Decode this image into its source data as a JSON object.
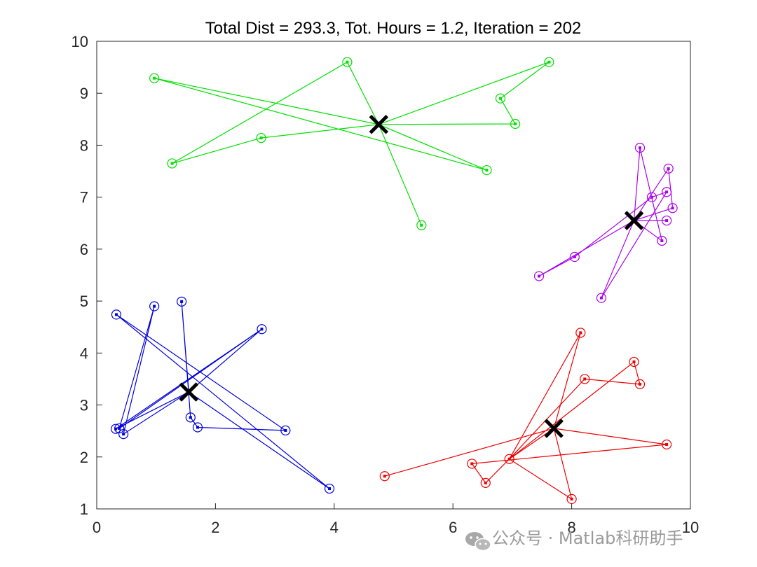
{
  "chart_data": {
    "type": "scatter",
    "title": "Total Dist = 293.3, Tot. Hours = 1.2, Iteration = 202",
    "xlabel": "",
    "ylabel": "",
    "xlim": [
      0,
      10
    ],
    "ylim": [
      1,
      10
    ],
    "xticks": [
      "0",
      "2",
      "4",
      "6",
      "8",
      "10"
    ],
    "yticks": [
      "1",
      "2",
      "3",
      "4",
      "5",
      "6",
      "7",
      "8",
      "9",
      "10"
    ],
    "grid": false,
    "legend": "none",
    "series": [
      {
        "color": "#00e000",
        "depot": [
          4.75,
          8.4
        ],
        "route": [
          [
            4.75,
            8.4
          ],
          [
            0.97,
            9.29
          ],
          [
            6.57,
            7.52
          ],
          [
            4.75,
            8.4
          ],
          [
            5.47,
            6.46
          ],
          [
            4.75,
            8.4
          ],
          [
            4.22,
            9.6
          ],
          [
            1.27,
            7.65
          ],
          [
            2.77,
            8.14
          ],
          [
            4.75,
            8.4
          ],
          [
            7.05,
            8.41
          ],
          [
            6.8,
            8.9
          ],
          [
            7.62,
            9.6
          ],
          [
            4.75,
            8.4
          ]
        ]
      },
      {
        "color": "#aa00ee",
        "depot": [
          9.05,
          6.55
        ],
        "route": [
          [
            9.05,
            6.55
          ],
          [
            9.15,
            7.95
          ],
          [
            9.52,
            6.16
          ],
          [
            9.05,
            6.55
          ],
          [
            9.6,
            6.55
          ],
          [
            9.05,
            6.55
          ],
          [
            9.7,
            6.79
          ],
          [
            9.63,
            7.55
          ],
          [
            9.05,
            6.55
          ],
          [
            8.5,
            5.06
          ],
          [
            9.6,
            7.1
          ],
          [
            9.35,
            7.0
          ],
          [
            8.05,
            5.85
          ],
          [
            7.45,
            5.48
          ],
          [
            9.05,
            6.55
          ]
        ]
      },
      {
        "color": "#0000dd",
        "depot": [
          1.55,
          3.25
        ],
        "route": [
          [
            1.55,
            3.25
          ],
          [
            2.78,
            4.46
          ],
          [
            0.38,
            2.55
          ],
          [
            0.97,
            4.9
          ],
          [
            0.45,
            2.44
          ],
          [
            1.55,
            3.25
          ],
          [
            0.32,
            2.54
          ],
          [
            1.55,
            3.25
          ],
          [
            2.78,
            4.46
          ],
          [
            0.32,
            2.54
          ],
          [
            1.55,
            3.25
          ],
          [
            3.92,
            1.39
          ],
          [
            0.33,
            4.74
          ],
          [
            3.18,
            2.51
          ],
          [
            1.7,
            2.57
          ],
          [
            1.58,
            2.76
          ],
          [
            1.43,
            4.99
          ],
          [
            1.55,
            3.25
          ]
        ]
      },
      {
        "color": "#ee0000",
        "depot": [
          7.7,
          2.55
        ],
        "route": [
          [
            7.7,
            2.55
          ],
          [
            9.6,
            2.24
          ],
          [
            6.32,
            1.87
          ],
          [
            6.55,
            1.5
          ],
          [
            6.95,
            1.96
          ],
          [
            9.05,
            3.83
          ],
          [
            9.15,
            3.4
          ],
          [
            8.22,
            3.5
          ],
          [
            6.95,
            1.96
          ],
          [
            8.15,
            4.39
          ],
          [
            7.7,
            2.55
          ],
          [
            8.0,
            1.19
          ],
          [
            6.95,
            1.96
          ],
          [
            7.7,
            2.55
          ],
          [
            4.85,
            1.63
          ],
          [
            7.7,
            2.55
          ]
        ]
      }
    ]
  },
  "watermark": {
    "text": "公众号 · Matlab科研助手"
  }
}
